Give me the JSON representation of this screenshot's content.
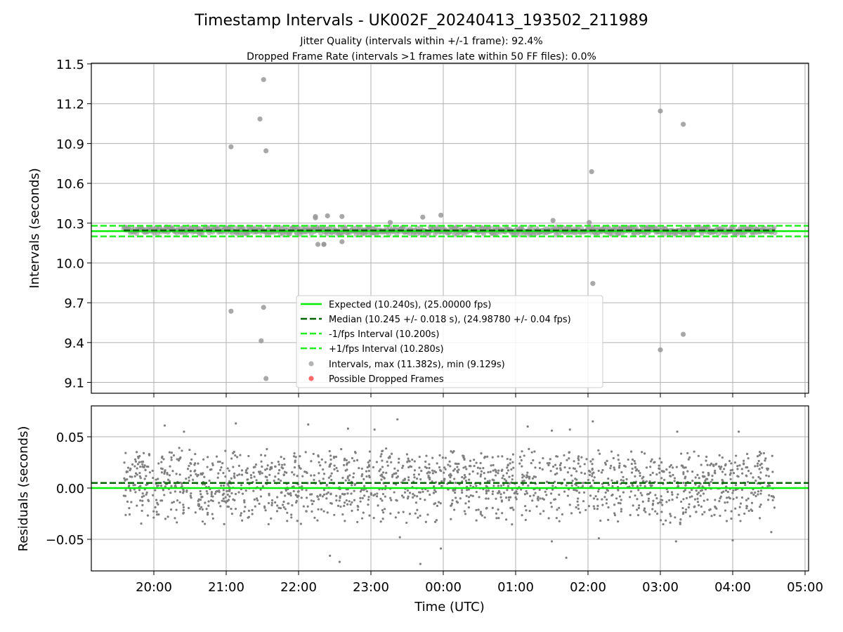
{
  "figure": {
    "title": "Timestamp Intervals - UK002F_20240413_193502_211989",
    "subtitle_1": "Jitter Quality (intervals within +/-1 frame): 92.4%",
    "subtitle_2": "Dropped Frame Rate (intervals >1 frames late within 50 FF files): 0.0%"
  },
  "colors": {
    "expected": "#00ee00",
    "median": "#006400",
    "fps_band": "#22ee22",
    "points": "#999999",
    "residual_points": "#7f7f7f",
    "dropped": "#ff0000",
    "grid": "#b0b0b0"
  },
  "chart_data": [
    {
      "type": "scatter",
      "ylabel": "Intervals (seconds)",
      "ylim": [
        9.03,
        11.5
      ],
      "yticks": [
        9.1,
        9.4,
        9.7,
        10.0,
        10.3,
        10.6,
        10.9,
        11.2,
        11.5
      ],
      "ytick_labels": [
        "9.1",
        "9.4",
        "9.7",
        "10.0",
        "10.3",
        "10.6",
        "10.9",
        "11.2",
        "11.5"
      ],
      "x_hours_range": [
        "19:35",
        "04:35"
      ],
      "grid": true,
      "lines": {
        "expected": 10.24,
        "median": 10.245,
        "minus_fps": 10.2,
        "plus_fps": 10.28
      },
      "series": [
        {
          "name": "Intervals, max (11.382s), min (9.129s)",
          "role": "outliers",
          "x": [
            "21:04",
            "21:28",
            "21:31",
            "21:33",
            "22:14",
            "22:24",
            "21:04",
            "21:29",
            "21:33",
            "21:31",
            "02:03",
            "02:04",
            "03:00",
            "03:19",
            "03:00",
            "03:19",
            "23:16",
            "22:21",
            "22:36",
            "22:14",
            "22:16",
            "22:21",
            "22:36",
            "23:43",
            "23:58",
            "01:31",
            "02:01"
          ],
          "values": [
            10.875,
            11.085,
            11.382,
            10.845,
            10.35,
            10.355,
            9.636,
            9.413,
            9.129,
            9.665,
            10.688,
            9.845,
            11.145,
            11.045,
            9.345,
            9.462,
            10.305,
            10.14,
            10.16,
            10.34,
            10.14,
            10.14,
            10.35,
            10.345,
            10.36,
            10.32,
            10.305
          ]
        },
        {
          "name": "Possible Dropped Frames",
          "x": [],
          "values": []
        }
      ],
      "legend": {
        "placement": "lower-center",
        "entries": [
          "Expected (10.240s), (25.00000 fps)",
          "Median (10.245 +/- 0.018 s), (24.98780 +/- 0.04 fps)",
          "-1/fps Interval (10.200s)",
          "+1/fps Interval (10.280s)",
          "Intervals, max (11.382s), min (9.129s)",
          "Possible Dropped Frames"
        ]
      }
    },
    {
      "type": "scatter",
      "xlabel": "Time (UTC)",
      "ylabel": "Residuals (seconds)",
      "ylim": [
        -0.08,
        0.08
      ],
      "yticks": [
        -0.05,
        0.0,
        0.05
      ],
      "ytick_labels": [
        "−0.05",
        "0.00",
        "0.05"
      ],
      "xticks": [
        "20:00",
        "21:00",
        "22:00",
        "23:00",
        "00:00",
        "01:00",
        "02:00",
        "03:00",
        "04:00",
        "05:00"
      ],
      "grid": true,
      "lines": {
        "expected": 0.0,
        "median": 0.005
      },
      "series": [
        {
          "name": "Residuals",
          "role": "outliers",
          "x": [
            "20:09",
            "20:25",
            "21:08",
            "22:08",
            "22:41",
            "23:03",
            "23:22",
            "01:10",
            "01:30",
            "01:45",
            "02:04",
            "03:14",
            "04:05",
            "22:26",
            "22:34",
            "23:41",
            "23:58",
            "01:30",
            "01:42",
            "02:09",
            "03:13",
            "04:00",
            "04:32",
            "23:24"
          ],
          "values": [
            0.061,
            0.055,
            0.063,
            0.062,
            0.058,
            0.057,
            0.067,
            0.06,
            0.056,
            0.057,
            0.065,
            0.055,
            0.055,
            -0.066,
            -0.072,
            -0.074,
            -0.059,
            -0.052,
            -0.068,
            -0.049,
            -0.052,
            -0.051,
            -0.043,
            -0.048
          ]
        }
      ]
    }
  ]
}
